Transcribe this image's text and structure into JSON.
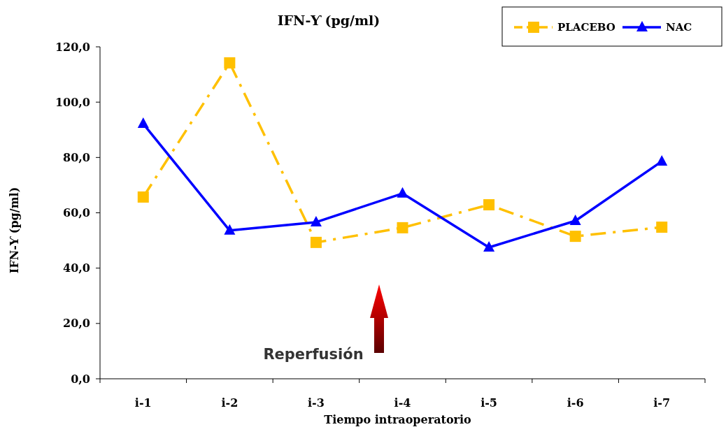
{
  "chart_data": {
    "type": "line",
    "title": "IFN-Ƴ (pg/ml)",
    "xlabel": "Tiempo intraoperatorio",
    "ylabel": "IFN-Ƴ (pg/ml)",
    "categories": [
      "i-1",
      "i-2",
      "i-3",
      "i-4",
      "i-5",
      "i-6",
      "i-7"
    ],
    "series": [
      {
        "name": "PLACEBO",
        "color": "#ffc000",
        "values": [
          65.7,
          114.2,
          49.3,
          54.6,
          62.9,
          51.5,
          54.8
        ],
        "marker": "square",
        "line_style": "dashed"
      },
      {
        "name": "NAC",
        "color": "#0000ff",
        "values": [
          92.2,
          53.6,
          56.6,
          67,
          47.5,
          57.1,
          78.6
        ],
        "marker": "triangle",
        "line_style": "solid"
      }
    ],
    "ylim": [
      0,
      120
    ],
    "yticks": [
      {
        "value": 0,
        "label": "0,0"
      },
      {
        "value": 20,
        "label": "20,0"
      },
      {
        "value": 40,
        "label": "40,0"
      },
      {
        "value": 60,
        "label": "60,0"
      },
      {
        "value": 80,
        "label": "80,0"
      },
      {
        "value": 100,
        "label": "100,0"
      },
      {
        "value": 120,
        "label": "120,0"
      }
    ],
    "annotations": [
      "Reperfusión"
    ],
    "legend": "top right",
    "grid": false
  }
}
